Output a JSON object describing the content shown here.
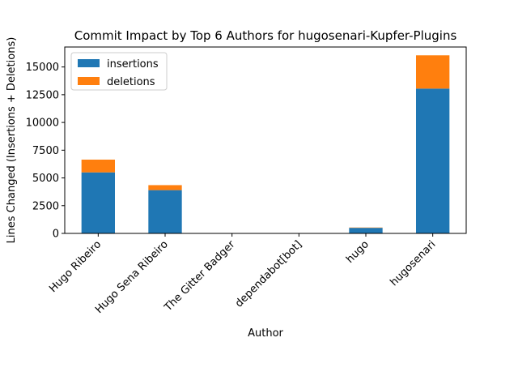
{
  "chart_data": {
    "type": "bar",
    "stacked": true,
    "title": "Commit Impact by Top 6 Authors for hugosenari-Kupfer-Plugins",
    "xlabel": "Author",
    "ylabel": "Lines Changed (Insertions + Deletions)",
    "categories": [
      "Hugo Ribeiro",
      "Hugo Sena Ribeiro",
      "The Gitter Badger",
      "dependabot[bot]",
      "hugo",
      "hugosenari"
    ],
    "series": [
      {
        "name": "insertions",
        "color": "#1f77b4",
        "values": [
          5500,
          3900,
          5,
          2,
          500,
          13050
        ]
      },
      {
        "name": "deletions",
        "color": "#ff7f0e",
        "values": [
          1150,
          450,
          2,
          1,
          30,
          3000
        ]
      }
    ],
    "ylim": [
      0,
      16800
    ],
    "yticks": [
      0,
      2500,
      5000,
      7500,
      10000,
      12500,
      15000
    ],
    "ytick_labels": [
      "0",
      "2500",
      "5000",
      "7500",
      "10000",
      "12500",
      "15000"
    ],
    "grid": false,
    "legend_position": "upper left"
  }
}
